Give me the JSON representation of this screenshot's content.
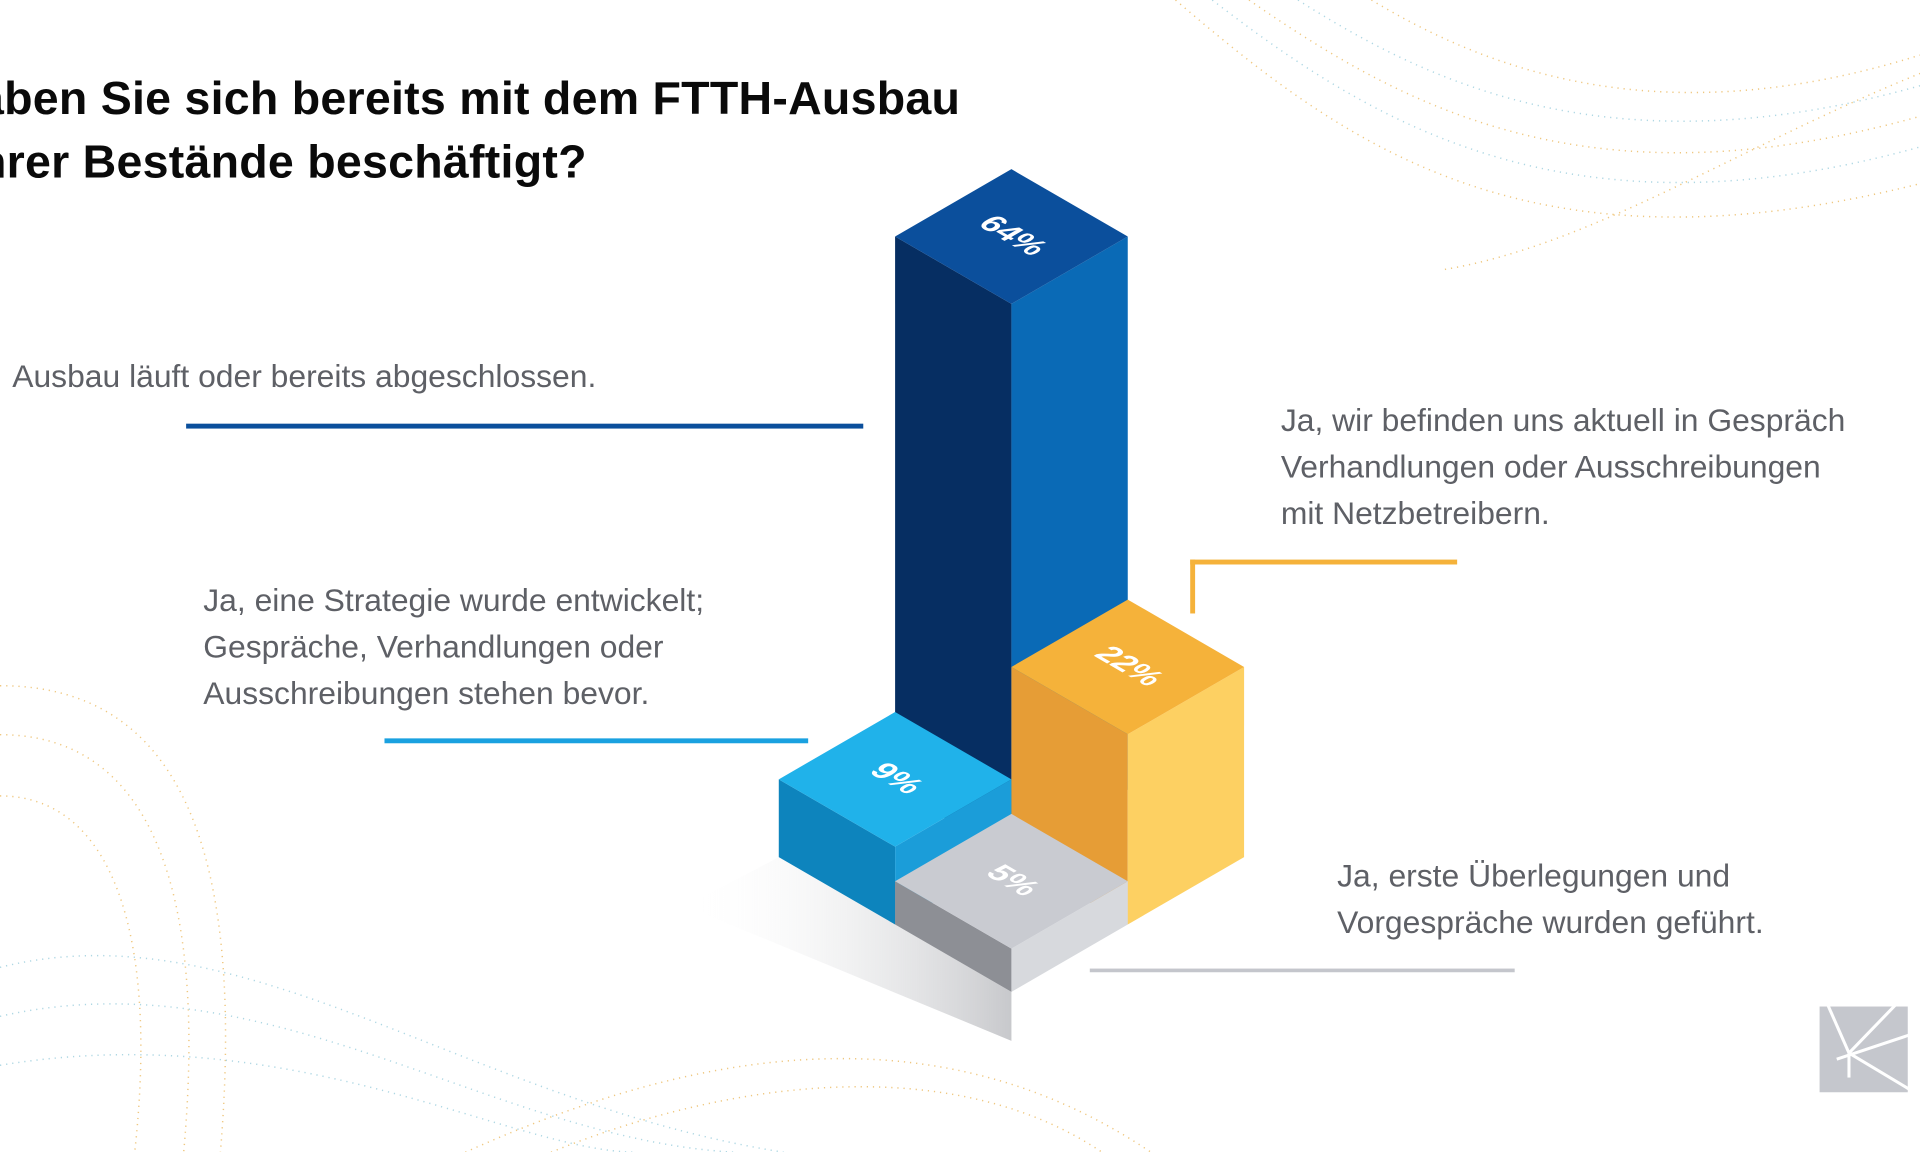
{
  "chart_data": {
    "type": "bar",
    "style": "isometric-3d",
    "title": [
      "aben Sie sich bereits mit dem FTTH-Ausbau",
      "hrer Bestände beschäftigt?"
    ],
    "categories": [
      [
        "Ausbau läuft oder bereits abgeschlossen."
      ],
      [
        "Ja, wir befinden uns aktuell in Gespräch",
        "Verhandlungen oder Ausschreibungen",
        "mit Netzbetreibern."
      ],
      [
        "Ja, eine Strategie wurde entwickelt;",
        "Gespräche, Verhandlungen oder",
        "Ausschreibungen stehen bevor."
      ],
      [
        "Ja, erste Überlegungen und",
        "Vorgespräche wurden geführt."
      ]
    ],
    "values": [
      64,
      22,
      9,
      5
    ],
    "value_labels": [
      "64%",
      "22%",
      "9%",
      "5%"
    ],
    "colors": {
      "bar_64": {
        "top": "#0b4f9c",
        "left": "#062e62",
        "right": "#0a6ab6"
      },
      "bar_22": {
        "top": "#f5b23a",
        "left": "#e69d36",
        "right": "#fdd062"
      },
      "bar_9": {
        "top": "#20b2ea",
        "left": "#0d84bd",
        "right": "#1b9dd9"
      },
      "bar_5": {
        "top": "#c9cbd1",
        "left": "#8d8f95",
        "right": "#d7d9dd"
      },
      "line_64": "#0b4f9c",
      "line_22": "#f5b23a",
      "line_9": "#1aa1e0",
      "line_5": "#c4c6cc"
    }
  }
}
